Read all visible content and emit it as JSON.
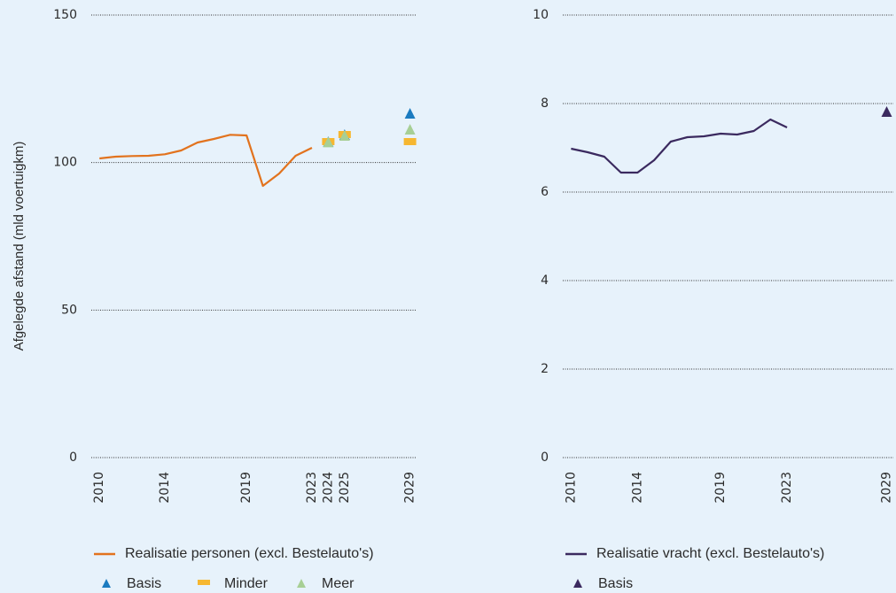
{
  "chart_data": [
    {
      "type": "line",
      "ylabel": "Afgelegde afstand (mld voertuigkm)",
      "xlim": [
        2009.5,
        2029.4
      ],
      "xticks": [
        2010,
        2014,
        2019,
        2023,
        2024,
        2025,
        2029
      ],
      "ylim": [
        0,
        150
      ],
      "yticks": [
        0,
        50,
        100,
        150
      ],
      "grid": true,
      "series": [
        {
          "name": "Realisatie personen (excl. Bestelauto's)",
          "color": "#e2731e",
          "marker": "line",
          "x": [
            2010,
            2011,
            2012,
            2013,
            2014,
            2015,
            2016,
            2017,
            2018,
            2019,
            2020,
            2021,
            2022,
            2023
          ],
          "values": [
            101.4,
            102,
            102.2,
            102.3,
            102.8,
            104.1,
            106.8,
            108,
            109.4,
            109.2,
            92.1,
            96.3,
            102.3,
            105
          ]
        },
        {
          "name": "Basis",
          "color": "#1b7bc0",
          "marker": "triangle",
          "x": [
            2024,
            2025,
            2029
          ],
          "values": [
            107.1,
            109.5,
            116.7
          ]
        },
        {
          "name": "Minder",
          "color": "#f6b731",
          "marker": "square",
          "x": [
            2024,
            2025,
            2029
          ],
          "values": [
            107.1,
            109.5,
            107.1
          ]
        },
        {
          "name": "Meer",
          "color": "#a7cf95",
          "marker": "triangle",
          "x": [
            2024,
            2025,
            2029
          ],
          "values": [
            107,
            109.2,
            111.3
          ]
        }
      ]
    },
    {
      "type": "line",
      "xlim": [
        2009.5,
        2029.4
      ],
      "xticks": [
        2010,
        2014,
        2019,
        2023,
        2029
      ],
      "ylim": [
        0,
        10
      ],
      "yticks": [
        0,
        2,
        4,
        6,
        8,
        10
      ],
      "grid": true,
      "series": [
        {
          "name": "Realisatie vracht (excl. Bestelauto's)",
          "color": "#3b2a5f",
          "marker": "line",
          "x": [
            2010,
            2011,
            2012,
            2013,
            2014,
            2015,
            2016,
            2017,
            2018,
            2019,
            2020,
            2021,
            2022,
            2023
          ],
          "values": [
            6.98,
            6.9,
            6.8,
            6.44,
            6.44,
            6.72,
            7.14,
            7.24,
            7.26,
            7.32,
            7.3,
            7.38,
            7.64,
            7.46
          ]
        },
        {
          "name": "Basis",
          "color": "#3b2a5f",
          "marker": "triangle",
          "x": [
            2029
          ],
          "values": [
            7.82
          ]
        }
      ]
    }
  ]
}
